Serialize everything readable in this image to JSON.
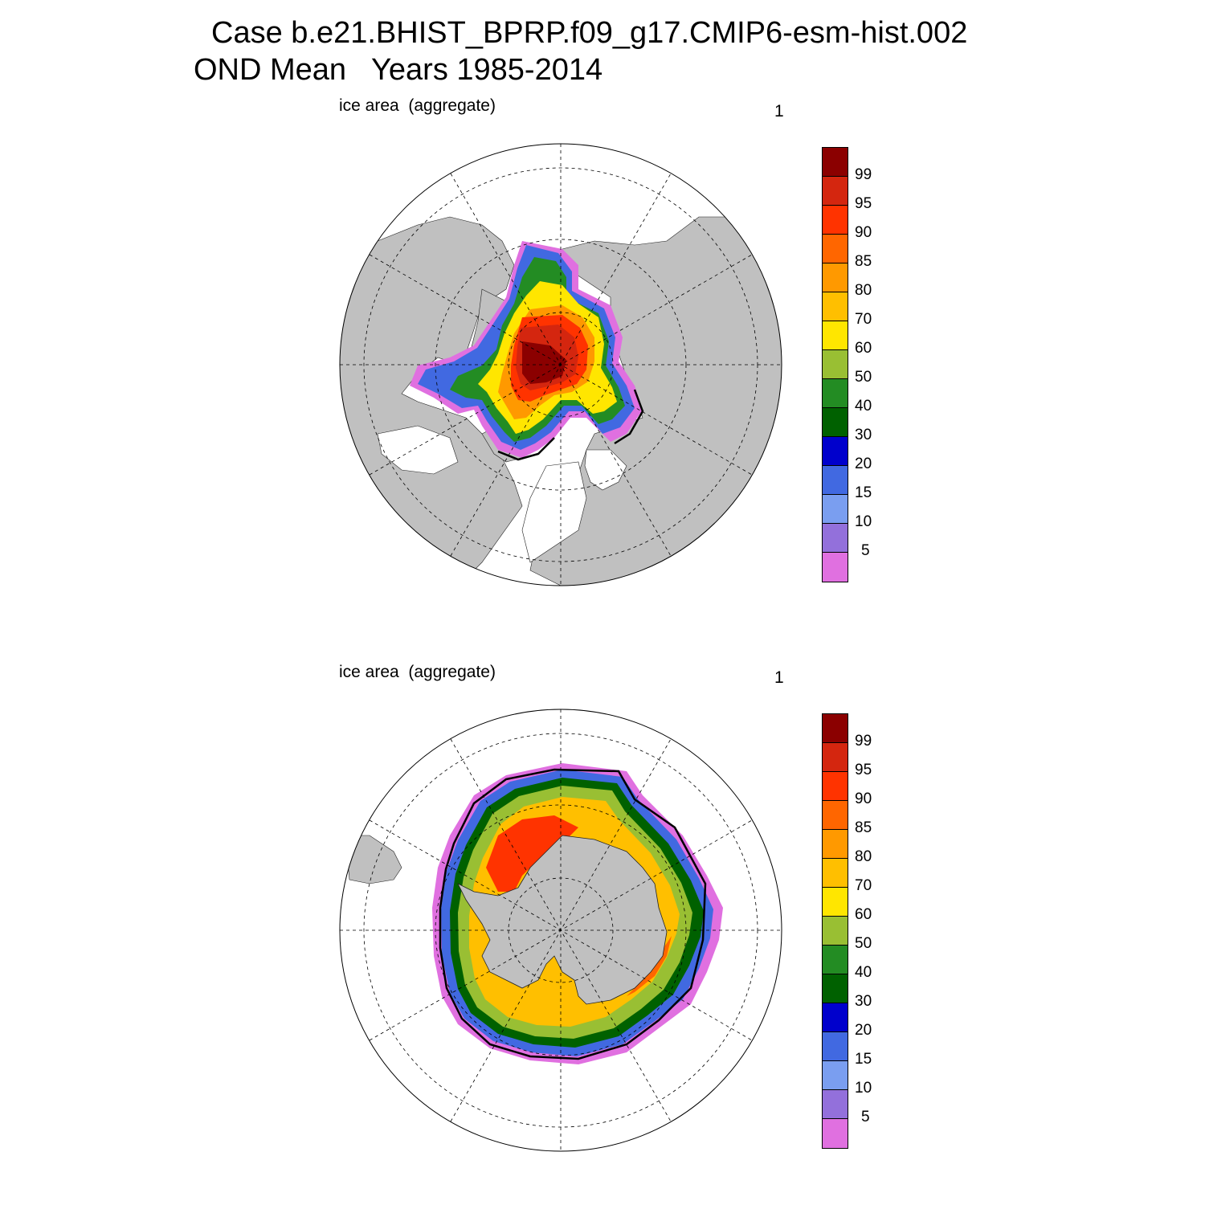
{
  "title_line1": "Case b.e21.BHIST_BPRP.f09_g17.CMIP6-esm-hist.002",
  "title_line2": "OND Mean   Years 1985-2014",
  "panels": [
    {
      "label_left": "ice area  (aggregate)",
      "label_right": "1",
      "hemisphere": "north"
    },
    {
      "label_left": "ice area  (aggregate)",
      "label_right": "1",
      "hemisphere": "south"
    }
  ],
  "colorbar": {
    "colors": [
      "#8b0000",
      "#d4260f",
      "#ff3300",
      "#ff6600",
      "#ff9900",
      "#ffbf00",
      "#ffe600",
      "#99bf33",
      "#238c23",
      "#006100",
      "#0000cc",
      "#4169e1",
      "#7a9ef0",
      "#9370db",
      "#e070e0"
    ],
    "tick_labels": [
      "99",
      "95",
      "90",
      "85",
      "80",
      "70",
      "60",
      "50",
      "40",
      "30",
      "20",
      "15",
      "10",
      "5"
    ]
  },
  "colors": {
    "land": "#c0c0c0",
    "ocean": "#ffffff",
    "grid": "#000000"
  }
}
